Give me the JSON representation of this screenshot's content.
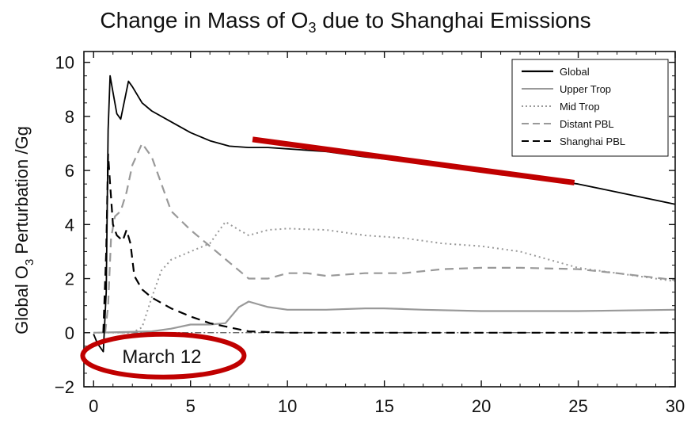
{
  "chart_data": {
    "type": "line",
    "title_pre": "Change in Mass of O",
    "title_sub": "3",
    "title_post": " due to Shanghai Emissions",
    "ylabel_pre": "Global O",
    "ylabel_sub": "3",
    "ylabel_post": " Perturbation  /Gg",
    "xlabel": "",
    "xlim": [
      -0.5,
      30
    ],
    "ylim": [
      -2,
      10.4
    ],
    "xticks": [
      0,
      5,
      10,
      15,
      20,
      25,
      30
    ],
    "yticks": [
      -2,
      0,
      2,
      4,
      6,
      8,
      10
    ],
    "grid": false,
    "legend_position": "top-right",
    "series": [
      {
        "name": "Global",
        "color": "#000000",
        "dash": "solid",
        "points": [
          [
            0,
            -0.05
          ],
          [
            0.2,
            -0.4
          ],
          [
            0.5,
            -0.7
          ],
          [
            0.65,
            1.5
          ],
          [
            0.75,
            7.5
          ],
          [
            0.85,
            9.5
          ],
          [
            1.0,
            8.9
          ],
          [
            1.2,
            8.1
          ],
          [
            1.4,
            7.9
          ],
          [
            1.6,
            8.6
          ],
          [
            1.8,
            9.3
          ],
          [
            2.0,
            9.1
          ],
          [
            2.5,
            8.5
          ],
          [
            3,
            8.2
          ],
          [
            4,
            7.8
          ],
          [
            5,
            7.4
          ],
          [
            6,
            7.1
          ],
          [
            7,
            6.9
          ],
          [
            8,
            6.85
          ],
          [
            9,
            6.85
          ],
          [
            10,
            6.8
          ],
          [
            12,
            6.7
          ],
          [
            14,
            6.5
          ],
          [
            16,
            6.35
          ],
          [
            18,
            6.2
          ],
          [
            20,
            6.0
          ],
          [
            22,
            5.8
          ],
          [
            25,
            5.5
          ],
          [
            27,
            5.2
          ],
          [
            30,
            4.75
          ]
        ]
      },
      {
        "name": "Upper Trop",
        "color": "#999999",
        "dash": "solid",
        "points": [
          [
            0,
            0
          ],
          [
            3,
            0.05
          ],
          [
            4,
            0.15
          ],
          [
            5,
            0.3
          ],
          [
            6,
            0.3
          ],
          [
            6.8,
            0.35
          ],
          [
            7.5,
            0.95
          ],
          [
            8,
            1.15
          ],
          [
            8.5,
            1.05
          ],
          [
            9,
            0.95
          ],
          [
            10,
            0.85
          ],
          [
            12,
            0.85
          ],
          [
            14,
            0.9
          ],
          [
            15,
            0.9
          ],
          [
            17,
            0.85
          ],
          [
            20,
            0.8
          ],
          [
            25,
            0.8
          ],
          [
            30,
            0.85
          ]
        ]
      },
      {
        "name": "Mid Trop",
        "color": "#999999",
        "dash": "dot",
        "points": [
          [
            0,
            0
          ],
          [
            2,
            0
          ],
          [
            2.5,
            0.2
          ],
          [
            3,
            1.3
          ],
          [
            3.5,
            2.3
          ],
          [
            4,
            2.7
          ],
          [
            5,
            3.0
          ],
          [
            6,
            3.3
          ],
          [
            6.8,
            4.1
          ],
          [
            7.5,
            3.8
          ],
          [
            8,
            3.6
          ],
          [
            9,
            3.8
          ],
          [
            10,
            3.85
          ],
          [
            12,
            3.8
          ],
          [
            14,
            3.6
          ],
          [
            16,
            3.5
          ],
          [
            18,
            3.3
          ],
          [
            20,
            3.2
          ],
          [
            22,
            3.0
          ],
          [
            25,
            2.4
          ],
          [
            27,
            2.2
          ],
          [
            30,
            1.9
          ]
        ]
      },
      {
        "name": "Distant PBL",
        "color": "#999999",
        "dash": "dash",
        "points": [
          [
            0.6,
            0
          ],
          [
            0.75,
            1.0
          ],
          [
            0.9,
            3.5
          ],
          [
            1.1,
            4.3
          ],
          [
            1.4,
            4.5
          ],
          [
            1.7,
            5.2
          ],
          [
            2.0,
            6.2
          ],
          [
            2.5,
            7.0
          ],
          [
            3,
            6.5
          ],
          [
            3.5,
            5.5
          ],
          [
            4,
            4.5
          ],
          [
            5,
            3.8
          ],
          [
            6,
            3.2
          ],
          [
            7,
            2.6
          ],
          [
            8,
            2.0
          ],
          [
            9,
            2.0
          ],
          [
            10,
            2.2
          ],
          [
            11,
            2.2
          ],
          [
            12,
            2.1
          ],
          [
            14,
            2.2
          ],
          [
            16,
            2.2
          ],
          [
            18,
            2.35
          ],
          [
            20,
            2.4
          ],
          [
            22,
            2.4
          ],
          [
            25,
            2.35
          ],
          [
            27,
            2.2
          ],
          [
            30,
            1.95
          ]
        ]
      },
      {
        "name": "Shanghai PBL",
        "color": "#000000",
        "dash": "dash",
        "points": [
          [
            0.5,
            0
          ],
          [
            0.65,
            3.0
          ],
          [
            0.75,
            6.6
          ],
          [
            0.85,
            5.5
          ],
          [
            1.0,
            4.0
          ],
          [
            1.2,
            3.6
          ],
          [
            1.5,
            3.4
          ],
          [
            1.7,
            3.8
          ],
          [
            1.9,
            3.3
          ],
          [
            2.1,
            2.1
          ],
          [
            2.5,
            1.6
          ],
          [
            3,
            1.3
          ],
          [
            4,
            0.9
          ],
          [
            5,
            0.6
          ],
          [
            6,
            0.35
          ],
          [
            7,
            0.2
          ],
          [
            8,
            0.05
          ],
          [
            10,
            0
          ],
          [
            15,
            0
          ],
          [
            30,
            0
          ]
        ]
      }
    ],
    "zero_line_color": "#555555",
    "annotations": {
      "label": "March 12",
      "ellipse_color": "#c00000",
      "trend_line_color": "#c00000",
      "trend_line": [
        [
          8.2,
          7.15
        ],
        [
          24.8,
          5.55
        ]
      ],
      "ellipse_center_x": 3.6,
      "ellipse_center_y": -0.85
    }
  }
}
